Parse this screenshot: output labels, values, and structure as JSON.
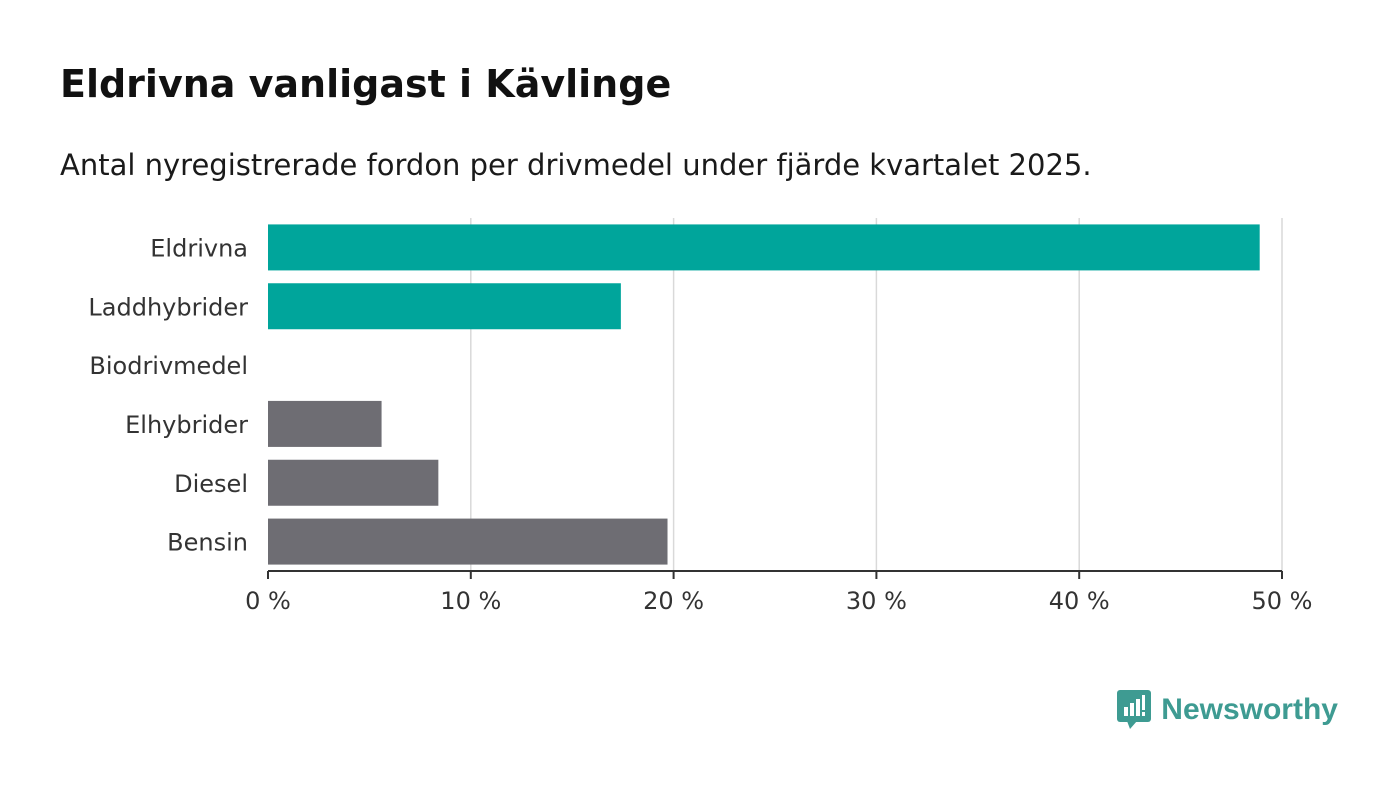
{
  "colors": {
    "highlight": "#00a59b",
    "other": "#6e6d73",
    "grid": "#d9d9d9",
    "axis": "#333333",
    "text": "#333333",
    "brand": "#3e9b92"
  },
  "chart_data": {
    "type": "bar",
    "orientation": "horizontal",
    "title": "Eldrivna vanligast i Kävlinge",
    "subtitle": "Antal nyregistrerade fordon per drivmedel under fjärde kvartalet 2025.",
    "categories": [
      "Eldrivna",
      "Laddhybrider",
      "Biodrivmedel",
      "Elhybrider",
      "Diesel",
      "Bensin"
    ],
    "values": [
      48.9,
      17.4,
      0,
      5.6,
      8.4,
      19.7
    ],
    "highlight": [
      true,
      true,
      true,
      false,
      false,
      false
    ],
    "xlim": [
      0,
      50
    ],
    "xticks": [
      0,
      10,
      20,
      30,
      40,
      50
    ],
    "xtick_labels": [
      "0 %",
      "10 %",
      "20 %",
      "30 %",
      "40 %",
      "50 %"
    ],
    "xlabel": "",
    "ylabel": "",
    "grid": true,
    "legend": "none"
  },
  "brand": {
    "name": "Newsworthy",
    "icon": "newsworthy-logo-icon"
  }
}
